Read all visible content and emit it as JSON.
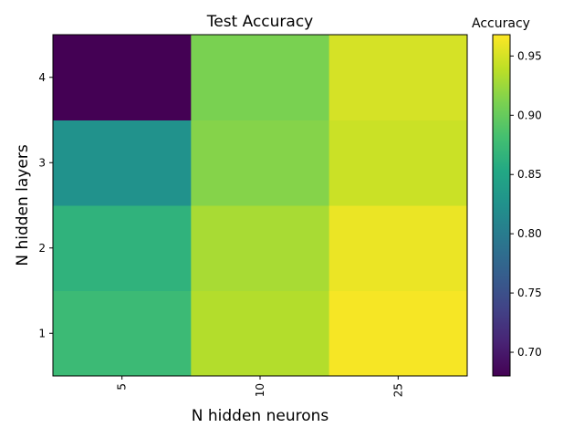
{
  "chart_data": {
    "type": "heatmap",
    "title": "Test Accuracy",
    "xlabel": "N hidden neurons",
    "ylabel": "N hidden layers",
    "x_categories": [
      "5",
      "10",
      "25"
    ],
    "y_categories": [
      "1",
      "2",
      "3",
      "4"
    ],
    "values": [
      [
        0.875,
        0.935,
        0.965
      ],
      [
        0.865,
        0.93,
        0.96
      ],
      [
        0.825,
        0.915,
        0.945
      ],
      [
        0.68,
        0.91,
        0.95
      ]
    ],
    "colorbar": {
      "label": "Accuracy",
      "range": [
        0.68,
        0.968
      ],
      "ticks": [
        0.7,
        0.75,
        0.8,
        0.85,
        0.9,
        0.95
      ],
      "tick_labels": [
        "0.70",
        "0.75",
        "0.80",
        "0.85",
        "0.90",
        "0.95"
      ],
      "colormap": "viridis"
    },
    "grid": false
  }
}
